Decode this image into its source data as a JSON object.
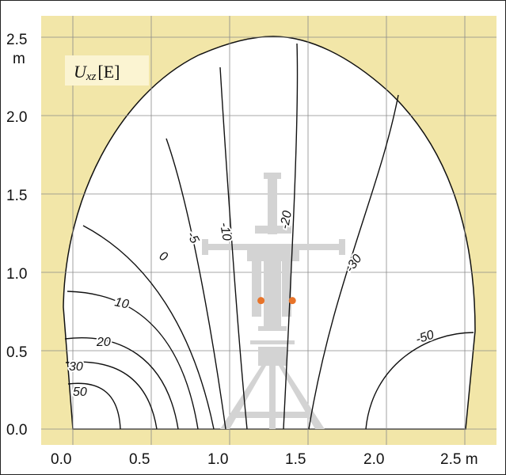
{
  "panel_title": {
    "symbol": "U",
    "subscript": "xz",
    "unit": "[E]"
  },
  "colors": {
    "background_fill": "#f2e6a8",
    "interior_fill": "#ffffff",
    "title_box_fill": "#fbf4d2",
    "grid_line": "#8a8a8a",
    "contour_line": "#111111",
    "tool_silhouette": "#d3d3d3",
    "marker": "#e8742a"
  },
  "chart_data": {
    "type": "contour",
    "title": "Uxz [E]",
    "xlabel": "m",
    "ylabel": "m",
    "xlim": [
      -0.05,
      2.6
    ],
    "ylim": [
      -0.05,
      2.55
    ],
    "grid": true,
    "x_ticks": [
      "0.0",
      "0.5",
      "1.0",
      "1.5",
      "2.0",
      "2.5"
    ],
    "x_unit_tick": "2.5 m",
    "y_ticks": [
      "0.0",
      "0.5",
      "1.0",
      "1.5",
      "2.0",
      "2.5"
    ],
    "y_unit_label": "m",
    "contour_levels": [
      {
        "level": "50",
        "label": "50"
      },
      {
        "level": "30",
        "label": "30"
      },
      {
        "level": "20",
        "label": "20"
      },
      {
        "level": "10",
        "label": "10"
      },
      {
        "level": "0",
        "label": "0"
      },
      {
        "level": "-5",
        "label": "-5"
      },
      {
        "level": "-10",
        "label": "-10"
      },
      {
        "level": "-20",
        "label": "-20"
      },
      {
        "level": "-30",
        "label": "-30"
      },
      {
        "level": "-50",
        "label": "-50"
      }
    ],
    "markers": [
      {
        "x": 1.2,
        "y": 0.82
      },
      {
        "x": 1.4,
        "y": 0.82
      }
    ]
  }
}
